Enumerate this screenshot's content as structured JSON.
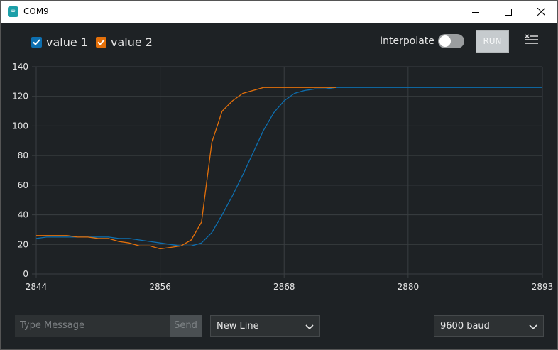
{
  "window": {
    "title": "COM9",
    "icon": "infinity-icon",
    "controls": [
      "minimize-icon",
      "maximize-icon",
      "close-icon"
    ]
  },
  "toolbar": {
    "legend": [
      {
        "label": "value 1",
        "color": "#0d6fb0",
        "checked": true
      },
      {
        "label": "value 2",
        "color": "#e4700a",
        "checked": true
      }
    ],
    "interpolate_label": "Interpolate",
    "interpolate_on": false,
    "run_label": "RUN",
    "clear_icon": "clear-list-icon"
  },
  "chart_data": {
    "type": "line",
    "grid": true,
    "xlim": [
      2844,
      2893
    ],
    "ylim": [
      0,
      140
    ],
    "x_ticks": [
      "2844",
      "2856",
      "2868",
      "2880",
      "2893"
    ],
    "y_ticks": [
      "0",
      "20",
      "40",
      "60",
      "80",
      "100",
      "120",
      "140"
    ],
    "series": [
      {
        "name": "value 1",
        "color": "#0d6fb0",
        "x": [
          2844,
          2845,
          2846,
          2847,
          2848,
          2849,
          2850,
          2851,
          2852,
          2853,
          2854,
          2855,
          2856,
          2857,
          2858,
          2859,
          2860,
          2861,
          2862,
          2863,
          2864,
          2865,
          2866,
          2867,
          2868,
          2869,
          2870,
          2871,
          2872,
          2873,
          2874,
          2893
        ],
        "values": [
          24,
          25,
          25,
          25,
          25,
          25,
          25,
          25,
          24,
          24,
          23,
          22,
          21,
          20,
          19,
          19,
          21,
          28,
          40,
          53,
          67,
          82,
          97,
          109,
          117,
          122,
          124,
          125,
          125,
          126,
          126,
          126
        ]
      },
      {
        "name": "value 2",
        "color": "#e4700a",
        "x": [
          2844,
          2845,
          2846,
          2847,
          2848,
          2849,
          2850,
          2851,
          2852,
          2853,
          2854,
          2855,
          2856,
          2857,
          2858,
          2859,
          2860,
          2861,
          2862,
          2863,
          2864,
          2865,
          2866,
          2867,
          2868,
          2869,
          2870,
          2871,
          2872,
          2873
        ],
        "values": [
          26,
          26,
          26,
          26,
          25,
          25,
          24,
          24,
          22,
          21,
          19,
          19,
          17,
          18,
          19,
          23,
          35,
          89,
          110,
          117,
          122,
          124,
          126,
          126,
          126,
          126,
          126,
          126,
          126,
          126
        ]
      }
    ]
  },
  "footer": {
    "message_placeholder": "Type Message",
    "send_label": "Send",
    "line_ending": "New Line",
    "baud_rate": "9600 baud"
  }
}
